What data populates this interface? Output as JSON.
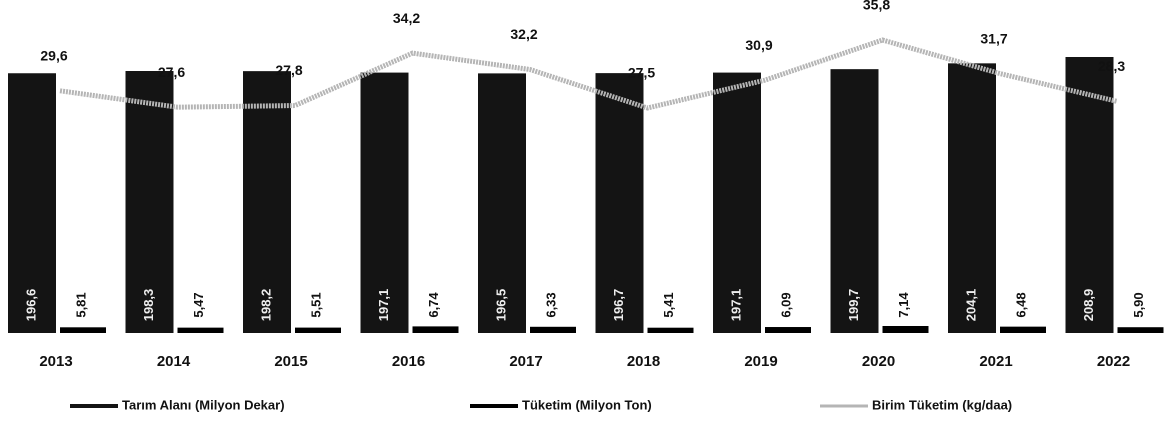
{
  "chart_data": {
    "type": "bar_line",
    "categories": [
      "2013",
      "2014",
      "2015",
      "2016",
      "2017",
      "2018",
      "2019",
      "2020",
      "2021",
      "2022"
    ],
    "series": [
      {
        "name": "Tarım Alanı (Milyon Dekar)",
        "color": "#141414",
        "kind": "bar",
        "values": [
          196.6,
          198.3,
          198.2,
          197.1,
          196.5,
          196.7,
          197.1,
          199.7,
          204.1,
          208.9
        ],
        "value_labels": [
          "196,6",
          "198,3",
          "198,2",
          "197,1",
          "196,5",
          "196,7",
          "197,1",
          "199,7",
          "204,1",
          "208,9"
        ]
      },
      {
        "name": "Tüketim (Milyon Ton)",
        "color": "#000000",
        "kind": "bar",
        "values": [
          5.81,
          5.47,
          5.51,
          6.74,
          6.33,
          5.41,
          6.09,
          7.14,
          6.48,
          5.9
        ],
        "value_labels": [
          "5,81",
          "5,47",
          "5,51",
          "6,74",
          "6,33",
          "5,41",
          "6,09",
          "7,14",
          "6,48",
          "5,90"
        ]
      },
      {
        "name": "Birim Tüketim (kg/daa)",
        "color": "#b5b5b5",
        "kind": "line",
        "values": [
          29.6,
          27.6,
          27.8,
          34.2,
          32.2,
          27.5,
          30.9,
          35.8,
          31.7,
          28.3
        ],
        "value_labels": [
          "29,6",
          "27,6",
          "27,8",
          "34,2",
          "32,2",
          "27,5",
          "30,9",
          "35,8",
          "31,7",
          "28,3"
        ]
      }
    ]
  }
}
